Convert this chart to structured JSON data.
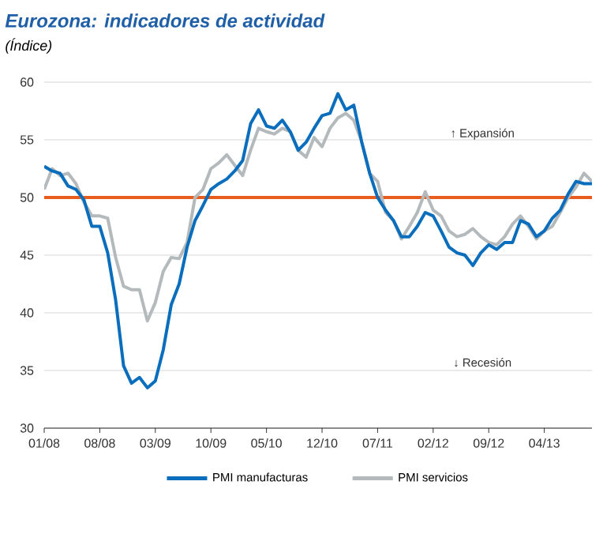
{
  "chart_data": {
    "type": "line",
    "title": "Eurozona: indicadores de actividad",
    "subtitle": "(Índice)",
    "annotations": [
      "↑ Expansión",
      "↓ Recesión"
    ],
    "x": [
      "2008-01",
      "2008-02",
      "2008-03",
      "2008-04",
      "2008-05",
      "2008-06",
      "2008-07",
      "2008-08",
      "2008-09",
      "2008-10",
      "2008-11",
      "2008-12",
      "2009-01",
      "2009-02",
      "2009-03",
      "2009-04",
      "2009-05",
      "2009-06",
      "2009-07",
      "2009-08",
      "2009-09",
      "2009-10",
      "2009-11",
      "2009-12",
      "2010-01",
      "2010-02",
      "2010-03",
      "2010-04",
      "2010-05",
      "2010-06",
      "2010-07",
      "2010-08",
      "2010-09",
      "2010-10",
      "2010-11",
      "2010-12",
      "2011-01",
      "2011-02",
      "2011-03",
      "2011-04",
      "2011-05",
      "2011-06",
      "2011-07",
      "2011-08",
      "2011-09",
      "2011-10",
      "2011-11",
      "2011-12",
      "2012-01",
      "2012-02",
      "2012-03",
      "2012-04",
      "2012-05",
      "2012-06",
      "2012-07",
      "2012-08",
      "2012-09",
      "2012-10",
      "2012-11",
      "2012-12",
      "2013-01",
      "2013-02",
      "2013-03",
      "2013-04",
      "2013-05",
      "2013-06",
      "2013-07",
      "2013-08",
      "2013-09",
      "2013-10"
    ],
    "series": [
      {
        "name": "PMI manufacturas",
        "color": "#0a6ebd",
        "values": [
          52.7,
          52.3,
          52.1,
          51.0,
          50.7,
          49.8,
          47.5,
          47.5,
          45.2,
          41.1,
          35.4,
          33.9,
          34.4,
          33.5,
          34.1,
          36.8,
          40.7,
          42.5,
          45.7,
          48.0,
          49.3,
          50.7,
          51.2,
          51.6,
          52.3,
          53.2,
          56.4,
          57.6,
          56.2,
          56.0,
          56.7,
          55.7,
          54.1,
          54.8,
          56.0,
          57.1,
          57.3,
          59.0,
          57.6,
          58.0,
          54.8,
          52.1,
          50.0,
          48.9,
          48.0,
          46.6,
          46.6,
          47.5,
          48.7,
          48.4,
          47.1,
          45.7,
          45.2,
          45.0,
          44.1,
          45.2,
          45.9,
          45.5,
          46.1,
          46.1,
          48.0,
          47.7,
          46.6,
          47.1,
          48.2,
          48.9,
          50.3,
          51.4,
          51.2,
          51.2
        ]
      },
      {
        "name": "PMI servicios",
        "color": "#b4b9bc",
        "values": [
          50.7,
          52.5,
          51.9,
          52.1,
          51.2,
          49.6,
          48.4,
          48.4,
          48.2,
          44.8,
          42.3,
          42.0,
          42.0,
          39.3,
          40.9,
          43.6,
          44.8,
          44.7,
          46.1,
          50.0,
          50.7,
          52.5,
          53.0,
          53.7,
          52.8,
          51.9,
          54.1,
          56.0,
          55.7,
          55.5,
          56.0,
          55.7,
          54.1,
          53.5,
          55.2,
          54.4,
          56.0,
          56.9,
          57.3,
          56.7,
          54.8,
          52.1,
          51.4,
          48.7,
          48.0,
          46.4,
          47.5,
          48.7,
          50.5,
          48.9,
          48.4,
          47.1,
          46.6,
          46.8,
          47.3,
          46.6,
          46.1,
          45.9,
          46.6,
          47.7,
          48.4,
          47.5,
          46.4,
          47.1,
          47.5,
          48.7,
          50.0,
          50.9,
          52.1,
          51.4
        ]
      }
    ],
    "xlim": [
      "2008-01",
      "2013-10"
    ],
    "xticks": [
      {
        "value": "2008-01",
        "label": "01/08"
      },
      {
        "value": "2008-08",
        "label": "08/08"
      },
      {
        "value": "2009-03",
        "label": "03/09"
      },
      {
        "value": "2009-10",
        "label": "10/09"
      },
      {
        "value": "2010-05",
        "label": "05/10"
      },
      {
        "value": "2010-12",
        "label": "12/10"
      },
      {
        "value": "2011-07",
        "label": "07/11"
      },
      {
        "value": "2012-02",
        "label": "02/12"
      },
      {
        "value": "2012-09",
        "label": "09/12"
      },
      {
        "value": "2013-04",
        "label": "04/13"
      }
    ],
    "ylim": [
      30,
      60
    ],
    "yticks": [
      30,
      35,
      40,
      45,
      50,
      55,
      60
    ],
    "ref_lines": [
      {
        "axis": "y",
        "value": 50,
        "color": "#e85d1e"
      }
    ],
    "grid": "y",
    "legend": "bottom",
    "marker": "none",
    "line_style": "solid"
  }
}
